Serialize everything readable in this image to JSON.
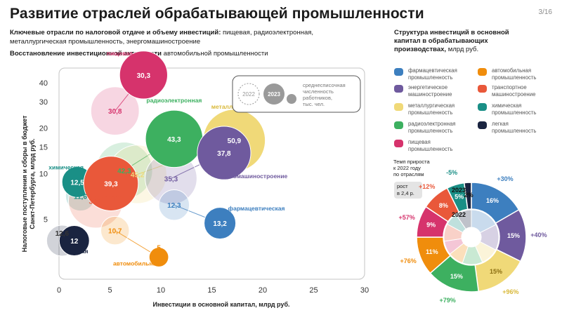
{
  "header": {
    "title": "Развитие отраслей обрабатывающей промышленности",
    "page": "3/16",
    "key_label": "Ключевые отрасли по налоговой отдаче и объему инвестиций:",
    "key_text": "пищевая, радиоэлектронная, металлургическая промышленность, энергомашиностроение",
    "recovery_label": "Восстановление инвестиционной активности",
    "recovery_text": "автомобильной промышленности"
  },
  "colors": {
    "food": "#d6336c",
    "radio": "#3db060",
    "metal": "#f0d978",
    "energy": "#6f5a9e",
    "chem": "#1a8f86",
    "transport": "#e9583a",
    "auto": "#f08d0c",
    "pharma": "#3d7fbf",
    "light": "#1a2440"
  },
  "chart_data": [
    {
      "type": "scatter",
      "subtype": "bubble",
      "xlabel": "Инвестиции в основной капитал, млрд руб.",
      "ylabel_line1": "Налоговые поступления и сборы в бюджет",
      "ylabel_line2": "Санкт-Петербурга, млрд руб.",
      "xlim": [
        0,
        30
      ],
      "ylim": [
        2,
        50
      ],
      "y_scale": "log",
      "x_ticks": [
        "0",
        "5",
        "10",
        "15",
        "20",
        "25",
        "30"
      ],
      "y_ticks": [
        "5",
        "10",
        "15",
        "20",
        "30",
        "40"
      ],
      "grid": false,
      "legend": {
        "year_old": "2022",
        "year_new": "2023",
        "text_line1": "среднесписочная",
        "text_line2": "численность",
        "text_line3": "работников,",
        "text_line4": "тыс. чел."
      },
      "industries": [
        {
          "key": "food",
          "name": "пищевая",
          "points": [
            {
              "year": 2022,
              "x": 5.5,
              "y": 26,
              "size": 30.8,
              "label": "30,8"
            },
            {
              "year": 2023,
              "x": 8.3,
              "y": 45,
              "size": 30.3,
              "label": "30,3"
            }
          ]
        },
        {
          "key": "radio",
          "name": "радиоэлектронная",
          "points": [
            {
              "year": 2022,
              "x": 6.4,
              "y": 10.5,
              "size": 42.3,
              "label": "42,3"
            },
            {
              "year": 2023,
              "x": 11.3,
              "y": 17,
              "size": 43.3,
              "label": "43,3"
            }
          ]
        },
        {
          "key": "metal",
          "name": "металлургическая",
          "points": [
            {
              "year": 2022,
              "x": 7.7,
              "y": 9.9,
              "size": 45.2,
              "label": "45,2"
            },
            {
              "year": 2023,
              "x": 17.2,
              "y": 16.6,
              "size": 50.9,
              "label": "50,9"
            }
          ]
        },
        {
          "key": "energy",
          "name": "энергомашиностроение",
          "points": [
            {
              "year": 2022,
              "x": 11,
              "y": 9.3,
              "size": 35.3,
              "label": "35,3"
            },
            {
              "year": 2023,
              "x": 16.2,
              "y": 13.7,
              "size": 37.8,
              "label": "37,8"
            }
          ]
        },
        {
          "key": "chem",
          "name": "химическая",
          "points": [
            {
              "year": 2022,
              "x": 2.1,
              "y": 7.1,
              "size": 11.6,
              "label": "11,6"
            },
            {
              "year": 2023,
              "x": 1.8,
              "y": 8.8,
              "size": 12.5,
              "label": "12,5"
            }
          ]
        },
        {
          "key": "transport",
          "name": "транспортная",
          "points": [
            {
              "year": 2022,
              "x": 3.6,
              "y": 6.6,
              "size": 38.9,
              "label": "38,9"
            },
            {
              "year": 2023,
              "x": 5.1,
              "y": 8.6,
              "size": 39.3,
              "label": "39,3"
            }
          ]
        },
        {
          "key": "auto",
          "name": "автомобильная",
          "points": [
            {
              "year": 2022,
              "x": 5.5,
              "y": 4.2,
              "size": 10.7,
              "label": "10,7"
            },
            {
              "year": 2023,
              "x": 9.8,
              "y": 2.8,
              "size": 5,
              "label": "5"
            }
          ]
        },
        {
          "key": "pharma",
          "name": "фармацевтическая",
          "points": [
            {
              "year": 2022,
              "x": 11.3,
              "y": 6.2,
              "size": 12.3,
              "label": "12,3"
            },
            {
              "year": 2023,
              "x": 15.8,
              "y": 4.7,
              "size": 13.2,
              "label": "13,2"
            }
          ]
        },
        {
          "key": "light",
          "name": "легкая",
          "points": [
            {
              "year": 2022,
              "x": 0.3,
              "y": 3.6,
              "size": 12.6,
              "label": "12,6"
            },
            {
              "year": 2023,
              "x": 1.5,
              "y": 3.6,
              "size": 12,
              "label": "12"
            }
          ]
        }
      ]
    },
    {
      "type": "pie",
      "subtype": "double-donut",
      "title_line1": "Структура инвестиций в основной",
      "title_line2": "капитал в обрабатывающих",
      "title_line3": "производствах,",
      "title_unit": "млрд руб.",
      "growth_title_line1": "Темп прироста",
      "growth_title_line2": "к 2022 году",
      "growth_title_line3": "по отраслям",
      "growth_note_line1": "рост",
      "growth_note_line2": "в 2,4 р.",
      "inner_label": "2022",
      "outer_label": "2023",
      "categories": [
        {
          "key": "pharma",
          "legend": [
            "фармацевтическая",
            "промышленность"
          ],
          "share_2023": 16,
          "label": "16%",
          "growth": "+30%"
        },
        {
          "key": "energy",
          "legend": [
            "энергетическое",
            "машиностроение"
          ],
          "share_2023": 15,
          "label": "15%",
          "growth": "+40%"
        },
        {
          "key": "metal",
          "legend": [
            "металлургическая",
            "промышленность"
          ],
          "share_2023": 15,
          "label": "15%",
          "growth": "+96%"
        },
        {
          "key": "radio",
          "legend": [
            "радиоэлектронная",
            "промышленность"
          ],
          "share_2023": 15,
          "label": "15%",
          "growth": "+79%"
        },
        {
          "key": "auto",
          "legend": [
            "автомобильная",
            "промышленность"
          ],
          "share_2023": 11,
          "label": "11%",
          "growth": "+76%"
        },
        {
          "key": "food",
          "legend": [
            "пищевая",
            "промышленность"
          ],
          "share_2023": 9,
          "label": "9%",
          "growth": "+57%"
        },
        {
          "key": "transport",
          "legend": [
            "транспортное",
            "машиностроение"
          ],
          "share_2023": 8,
          "label": "8%",
          "growth": "+12%"
        },
        {
          "key": "chem",
          "legend": [
            "химическая",
            "промышленность"
          ],
          "share_2023": 5,
          "label": "5%",
          "growth": "-5%"
        },
        {
          "key": "light",
          "legend": [
            "легкая",
            "промышленность"
          ],
          "share_2023": 2,
          "label": "2%",
          "growth": ""
        }
      ],
      "inner_shares_2022": [
        17.5,
        15.2,
        10.7,
        11.9,
        9.1,
        8.2,
        10.3,
        7.6,
        9.5
      ]
    }
  ]
}
